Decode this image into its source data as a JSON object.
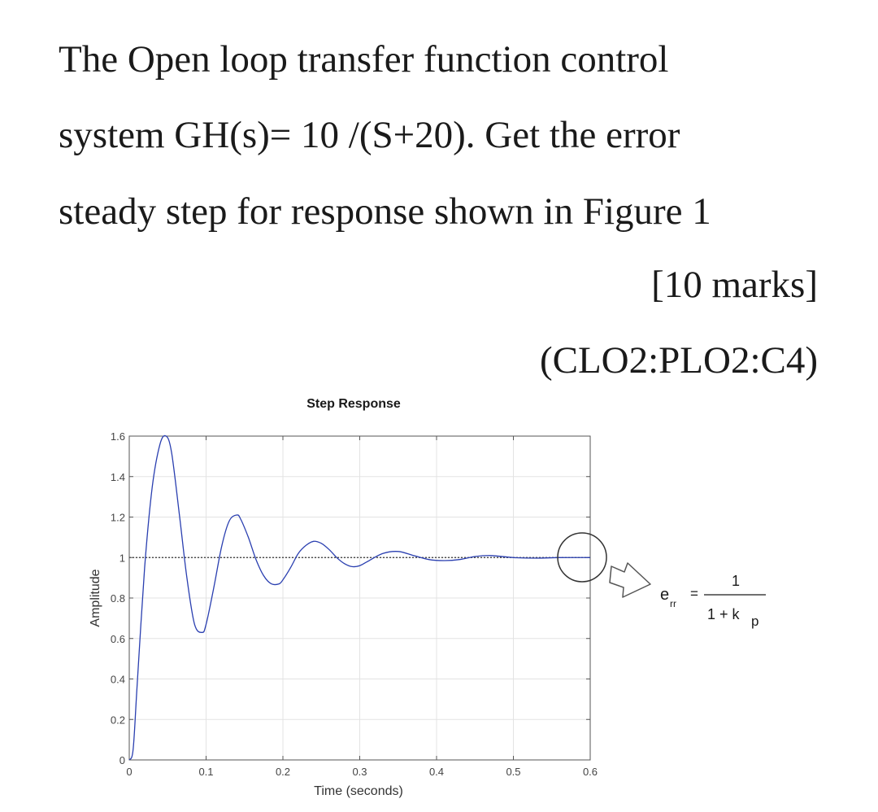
{
  "question": {
    "line1": "The Open loop transfer function control",
    "line2": "system GH(s)=  10 /(S+20). Get the error",
    "line3": "steady step for response shown in Figure 1",
    "marks": "[10 marks]",
    "clo": "(CLO2:PLO2:C4)"
  },
  "chart_data": {
    "type": "line",
    "title": "Step Response",
    "xlabel": "Time (seconds)",
    "ylabel": "Amplitude",
    "xlim": [
      0,
      0.6
    ],
    "ylim": [
      0,
      1.6
    ],
    "xticks": [
      "0",
      "0.1",
      "0.2",
      "0.3",
      "0.4",
      "0.5",
      "0.6"
    ],
    "yticks": [
      "0",
      "0.2",
      "0.4",
      "0.6",
      "0.8",
      "1",
      "1.2",
      "1.4",
      "1.6"
    ],
    "grid": true,
    "reference_line": 1,
    "series": [
      {
        "x": [
          0,
          0.005,
          0.01,
          0.02,
          0.03,
          0.04,
          0.048,
          0.055,
          0.065,
          0.075,
          0.085,
          0.095,
          0.1,
          0.11,
          0.12,
          0.13,
          0.14,
          0.145,
          0.155,
          0.165,
          0.175,
          0.185,
          0.195,
          0.2,
          0.21,
          0.22,
          0.23,
          0.24,
          0.25,
          0.26,
          0.27,
          0.28,
          0.29,
          0.3,
          0.31,
          0.33,
          0.35,
          0.37,
          0.39,
          0.41,
          0.43,
          0.45,
          0.47,
          0.5,
          0.53,
          0.56,
          0.6
        ],
        "values": [
          0,
          0.05,
          0.35,
          0.95,
          1.35,
          1.56,
          1.6,
          1.52,
          1.22,
          0.9,
          0.67,
          0.63,
          0.67,
          0.85,
          1.05,
          1.18,
          1.21,
          1.19,
          1.1,
          0.99,
          0.91,
          0.87,
          0.87,
          0.89,
          0.95,
          1.02,
          1.06,
          1.08,
          1.07,
          1.04,
          1.0,
          0.97,
          0.955,
          0.96,
          0.98,
          1.02,
          1.03,
          1.01,
          0.99,
          0.985,
          0.99,
          1.005,
          1.01,
          1.0,
          0.997,
          1.0,
          1.0
        ],
        "color": "#2a3fb0"
      }
    ],
    "formula": {
      "lhs": "e",
      "lhs_sub": "rr",
      "equals": "=",
      "numerator": "1",
      "denominator": "1 + k",
      "denominator_sub": "p"
    }
  }
}
